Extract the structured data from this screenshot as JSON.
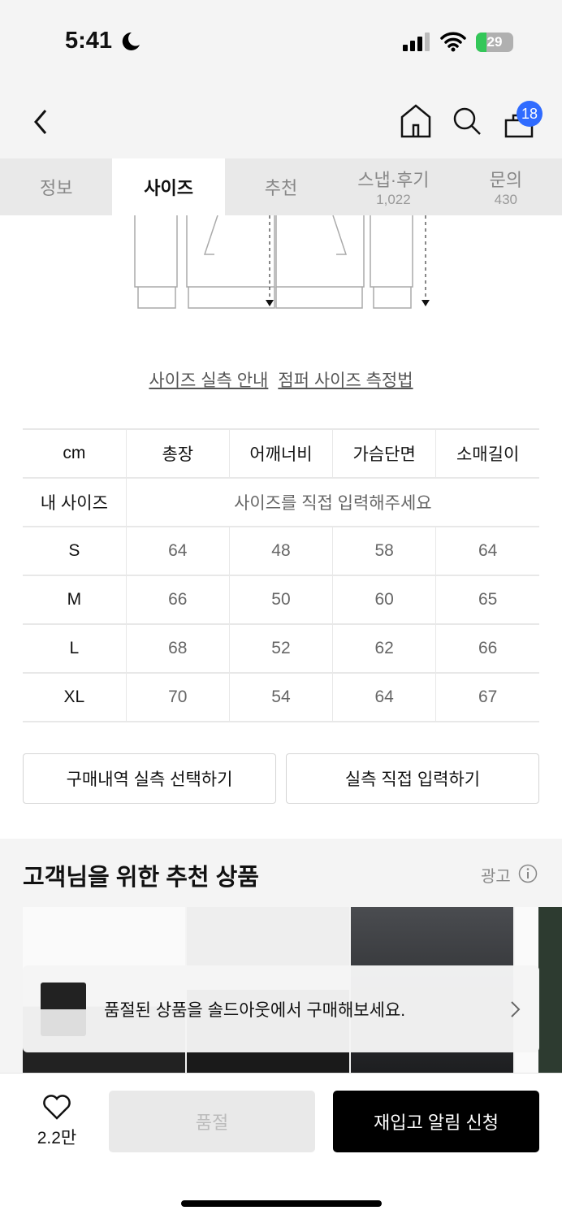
{
  "status": {
    "time": "5:41",
    "battery": "29",
    "battery_level": 29
  },
  "nav": {
    "cart_count": "18"
  },
  "tabs": [
    {
      "label": "정보"
    },
    {
      "label": "사이즈",
      "active": true
    },
    {
      "label": "추천"
    },
    {
      "label": "스냅·후기",
      "count": "1,022"
    },
    {
      "label": "문의",
      "count": "430"
    }
  ],
  "links": {
    "guide": "사이즈 실측 안내",
    "method": "점퍼 사이즈 측정법"
  },
  "size_table": {
    "headers": [
      "cm",
      "총장",
      "어깨너비",
      "가슴단면",
      "소매길이"
    ],
    "my_size_label": "내 사이즈",
    "my_size_prompt": "사이즈를 직접 입력해주세요",
    "rows": [
      [
        "S",
        "64",
        "48",
        "58",
        "64"
      ],
      [
        "M",
        "66",
        "50",
        "60",
        "65"
      ],
      [
        "L",
        "68",
        "52",
        "62",
        "66"
      ],
      [
        "XL",
        "70",
        "54",
        "64",
        "67"
      ]
    ]
  },
  "buttons": {
    "history": "구매내역 실측 선택하기",
    "manual": "실측 직접 입력하기"
  },
  "recommend": {
    "title": "고객님을 위한 추천 상품",
    "ad": "광고"
  },
  "toast": {
    "text": "품절된 상품을 솔드아웃에서 구매해보세요."
  },
  "bottom": {
    "likes": "2.2만",
    "soldout": "품절",
    "restock": "재입고 알림 신청"
  },
  "colors": {
    "badge": "#2f6bff",
    "battery": "#34c759"
  }
}
